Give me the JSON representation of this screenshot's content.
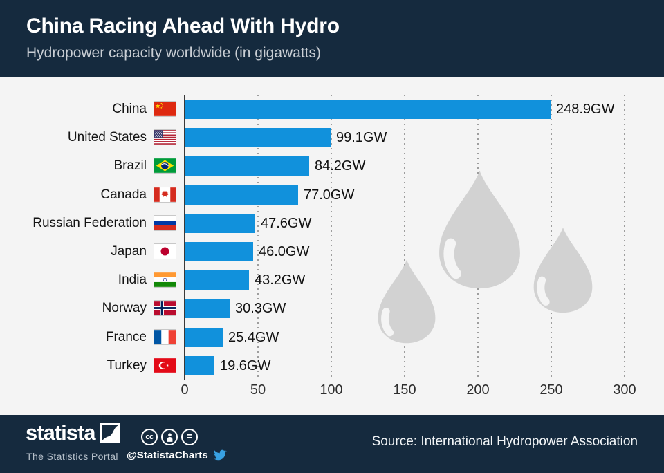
{
  "chart_data": {
    "type": "bar",
    "orientation": "horizontal",
    "title": "China Racing Ahead With Hydro",
    "subtitle": "Hydropower capacity worldwide (in gigawatts)",
    "unit": "GW",
    "categories": [
      "China",
      "United States",
      "Brazil",
      "Canada",
      "Russian Federation",
      "Japan",
      "India",
      "Norway",
      "France",
      "Turkey"
    ],
    "values": [
      248.9,
      99.1,
      84.2,
      77.0,
      47.6,
      46.0,
      43.2,
      30.3,
      25.4,
      19.6
    ],
    "value_labels": [
      "248.9GW",
      "99.1GW",
      "84.2GW",
      "77.0GW",
      "47.6GW",
      "46.0GW",
      "43.2GW",
      "30.3GW",
      "25.4GW",
      "19.6GW"
    ],
    "flags": [
      "china",
      "usa",
      "brazil",
      "canada",
      "russia",
      "japan",
      "india",
      "norway",
      "france",
      "turkey"
    ],
    "xlim": [
      0,
      300
    ],
    "x_ticks": [
      0,
      50,
      100,
      150,
      200,
      250,
      300
    ],
    "grid": "dotted-vertical",
    "legend": "none",
    "background_art": "three-water-drop-icons"
  },
  "footer": {
    "brand": "statista",
    "tagline": "The Statistics Portal",
    "handle": "@StatistaCharts",
    "cc_glyph": "cc",
    "equals_glyph": "=",
    "source": "Source: International Hydropower Association"
  },
  "colors": {
    "header_bg": "#152a3e",
    "chart_bg": "#f4f4f4",
    "bar": "#1191dc",
    "drop": "#d2d2d2",
    "twitter": "#38a1e2",
    "subtitle": "#c9ced4"
  }
}
